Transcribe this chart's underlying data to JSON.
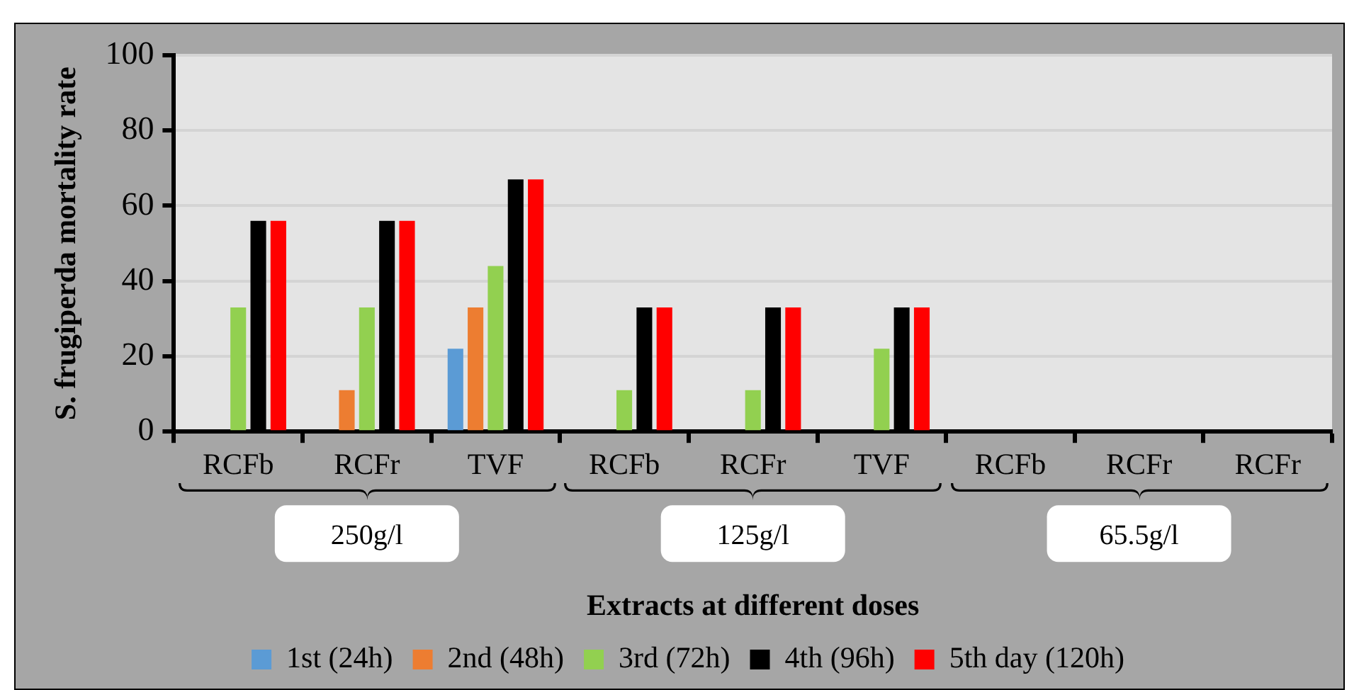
{
  "chart_data": {
    "type": "bar",
    "xlabel": "Extracts at different doses",
    "ylabel": "S. frugiperda mortality rate",
    "categories": [
      "RCFb",
      "RCFr",
      "TVF",
      "RCFb",
      "RCFr",
      "TVF",
      "RCFb",
      "RCFr",
      "RCFr"
    ],
    "series": [
      {
        "name": "1st (24h)",
        "color": "#5b9bd5",
        "values": [
          0,
          0,
          22,
          0,
          0,
          0,
          0,
          0,
          0
        ]
      },
      {
        "name": "2nd (48h)",
        "color": "#ed7d31",
        "values": [
          0,
          11,
          33,
          0,
          0,
          0,
          0,
          0,
          0
        ]
      },
      {
        "name": "3rd (72h)",
        "color": "#92d050",
        "values": [
          33,
          33,
          44,
          11,
          11,
          22,
          0,
          0,
          0
        ]
      },
      {
        "name": "4th (96h)",
        "color": "#000000",
        "values": [
          56,
          56,
          67,
          33,
          33,
          33,
          0,
          0,
          0
        ]
      },
      {
        "name": "5th day (120h)",
        "color": "#ff0000",
        "values": [
          56,
          56,
          67,
          33,
          33,
          33,
          0,
          0,
          0
        ]
      }
    ],
    "ylim": [
      0,
      100
    ],
    "yticks": [
      0,
      20,
      40,
      60,
      80,
      100
    ],
    "grid": "y",
    "legend": "bottom",
    "annotations": [
      "250g/l",
      "125g/l",
      "65.5g/l"
    ]
  }
}
